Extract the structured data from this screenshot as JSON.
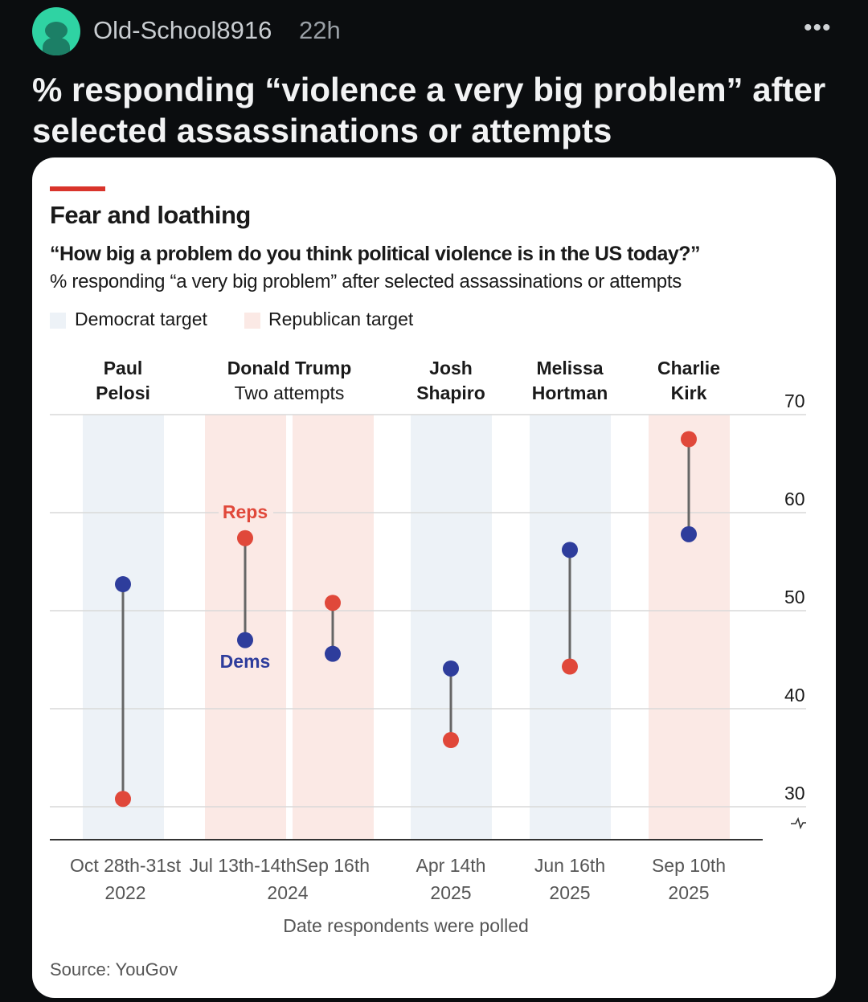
{
  "post": {
    "username": "Old-School8916",
    "time": "22h",
    "more_icon": "ellipsis-icon",
    "title": "% responding “violence a very big problem” after selected assassinations or attempts"
  },
  "colors": {
    "dem": "#2e3d9c",
    "rep": "#e0483a",
    "dem_band": "#edf2f7",
    "rep_band": "#fbe9e5",
    "accent": "#d9342b",
    "stem": "#666666"
  },
  "chart_data": {
    "type": "dumbbell",
    "title": "Fear and loathing",
    "subtitle": "“How big a problem do you think political violence is in the US today?”",
    "subtitle2": "% responding “a very big problem” after selected assassinations or attempts",
    "legend": [
      {
        "label": "Democrat target",
        "band": "dem"
      },
      {
        "label": "Republican target",
        "band": "rep"
      }
    ],
    "legend_placement": "top-left",
    "xlabel": "Date respondents were polled",
    "ylim": [
      30,
      70
    ],
    "yticks": [
      30,
      40,
      50,
      60,
      70
    ],
    "y_axis_side": "right",
    "series_labels": {
      "reps": "Reps",
      "dems": "Dems"
    },
    "source": "Source: YouGov",
    "events": [
      {
        "name": [
          "Paul",
          "Pelosi"
        ],
        "date": "Oct 28th-31st",
        "year": "2022",
        "target": "dem",
        "dems": 52.7,
        "reps": 30.8
      },
      {
        "name": [
          "Donald Trump",
          "Two attempts"
        ],
        "date": "Jul 13th-14th",
        "year": "2024",
        "target": "rep",
        "dems": 47.0,
        "reps": 57.4
      },
      {
        "name": null,
        "date": "Sep 16th",
        "year": null,
        "target": "rep",
        "dems": 45.6,
        "reps": 50.8
      },
      {
        "name": [
          "Josh",
          "Shapiro"
        ],
        "date": "Apr 14th",
        "year": "2025",
        "target": "dem",
        "dems": 44.1,
        "reps": 36.8
      },
      {
        "name": [
          "Melissa",
          "Hortman"
        ],
        "date": "Jun 16th",
        "year": "2025",
        "target": "dem",
        "dems": 56.2,
        "reps": 44.3
      },
      {
        "name": [
          "Charlie",
          "Kirk"
        ],
        "date": "Sep 10th",
        "year": "2025",
        "target": "rep",
        "dems": 57.8,
        "reps": 67.5
      }
    ]
  }
}
